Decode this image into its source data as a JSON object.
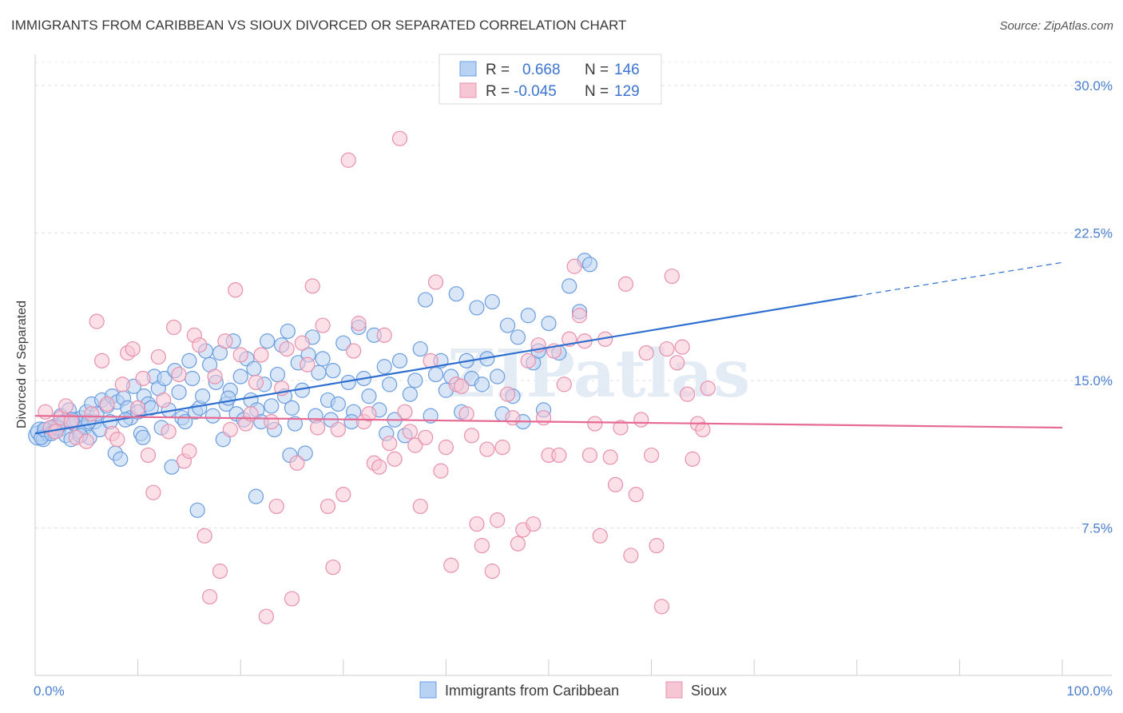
{
  "header": {
    "title": "IMMIGRANTS FROM CARIBBEAN VS SIOUX DIVORCED OR SEPARATED CORRELATION CHART",
    "source": "Source: ZipAtlas.com"
  },
  "watermark": "ZIPatlas",
  "legend": {
    "rows": [
      {
        "r_label": "R =",
        "r_value": "0.668",
        "n_label": "N =",
        "n_value": "146",
        "color": "#aac8f0",
        "stroke": "#6a9de0"
      },
      {
        "r_label": "R =",
        "r_value": "-0.045",
        "n_label": "N =",
        "n_value": "129",
        "color": "#f6c0d2",
        "stroke": "#e890ad"
      }
    ]
  },
  "chart_data": {
    "type": "scatter",
    "title": "IMMIGRANTS FROM CARIBBEAN VS SIOUX DIVORCED OR SEPARATED CORRELATION CHART",
    "xlabel": "",
    "ylabel": "Divorced or Separated",
    "xlim": [
      0,
      100
    ],
    "ylim": [
      0,
      31.5
    ],
    "y_ticks": [
      7.5,
      15.0,
      22.5,
      30.0
    ],
    "y_tick_labels": [
      "7.5%",
      "15.0%",
      "22.5%",
      "30.0%"
    ],
    "x_tick_labels": [
      "0.0%",
      "100.0%"
    ],
    "grid": true,
    "legend_placement": "top-center",
    "series": [
      {
        "name": "Immigrants from Caribbean",
        "color": "#6a9de0",
        "fill": "#b8d2f3",
        "trend": {
          "x": [
            0,
            80,
            100
          ],
          "y": [
            12.3,
            19.3,
            21.0
          ],
          "solid_until": 80
        },
        "points": [
          [
            0.3,
            12.2
          ],
          [
            0.5,
            12.4
          ],
          [
            0.8,
            12.0
          ],
          [
            1.0,
            12.5
          ],
          [
            1.2,
            12.3
          ],
          [
            1.5,
            12.6
          ],
          [
            1.8,
            12.4
          ],
          [
            2.0,
            12.7
          ],
          [
            2.3,
            12.5
          ],
          [
            2.5,
            13.2
          ],
          [
            2.8,
            12.9
          ],
          [
            3.0,
            12.2
          ],
          [
            3.3,
            13.5
          ],
          [
            3.5,
            12.0
          ],
          [
            3.8,
            12.8
          ],
          [
            4.0,
            13.0
          ],
          [
            4.3,
            12.4
          ],
          [
            4.5,
            13.1
          ],
          [
            4.8,
            12.6
          ],
          [
            5.0,
            13.4
          ],
          [
            5.3,
            12.1
          ],
          [
            5.5,
            13.8
          ],
          [
            5.8,
            12.9
          ],
          [
            6.0,
            13.3
          ],
          [
            6.3,
            12.5
          ],
          [
            6.5,
            14.0
          ],
          [
            7.0,
            13.7
          ],
          [
            7.3,
            12.9
          ],
          [
            7.5,
            14.2
          ],
          [
            7.8,
            11.3
          ],
          [
            8.0,
            13.9
          ],
          [
            8.3,
            11.0
          ],
          [
            8.6,
            14.1
          ],
          [
            9.0,
            13.6
          ],
          [
            9.3,
            13.1
          ],
          [
            9.6,
            14.7
          ],
          [
            10.0,
            13.4
          ],
          [
            10.3,
            12.3
          ],
          [
            10.6,
            14.2
          ],
          [
            11.0,
            13.8
          ],
          [
            11.3,
            13.6
          ],
          [
            11.6,
            15.2
          ],
          [
            12.0,
            14.6
          ],
          [
            12.3,
            12.6
          ],
          [
            12.6,
            15.1
          ],
          [
            13.0,
            13.5
          ],
          [
            13.3,
            10.6
          ],
          [
            13.6,
            15.5
          ],
          [
            14.0,
            14.4
          ],
          [
            14.3,
            13.1
          ],
          [
            14.6,
            12.9
          ],
          [
            15.0,
            16.0
          ],
          [
            15.3,
            15.1
          ],
          [
            15.6,
            13.4
          ],
          [
            16.0,
            13.6
          ],
          [
            16.3,
            14.2
          ],
          [
            16.6,
            16.5
          ],
          [
            17.0,
            15.8
          ],
          [
            17.3,
            13.2
          ],
          [
            17.6,
            14.9
          ],
          [
            18.0,
            16.4
          ],
          [
            18.3,
            12.0
          ],
          [
            18.6,
            13.8
          ],
          [
            19.0,
            14.5
          ],
          [
            19.3,
            17.0
          ],
          [
            19.6,
            13.3
          ],
          [
            20.0,
            15.2
          ],
          [
            20.3,
            13.0
          ],
          [
            20.6,
            16.1
          ],
          [
            21.0,
            14.0
          ],
          [
            21.3,
            15.6
          ],
          [
            21.6,
            13.5
          ],
          [
            22.0,
            12.9
          ],
          [
            22.3,
            14.8
          ],
          [
            22.6,
            17.0
          ],
          [
            23.0,
            13.7
          ],
          [
            23.3,
            12.5
          ],
          [
            23.6,
            15.3
          ],
          [
            24.0,
            16.8
          ],
          [
            24.3,
            14.2
          ],
          [
            24.6,
            17.5
          ],
          [
            25.0,
            13.6
          ],
          [
            25.3,
            12.8
          ],
          [
            25.6,
            15.9
          ],
          [
            26.0,
            14.5
          ],
          [
            26.3,
            11.3
          ],
          [
            26.6,
            16.3
          ],
          [
            27.0,
            17.2
          ],
          [
            27.3,
            13.2
          ],
          [
            27.6,
            15.4
          ],
          [
            28.0,
            16.1
          ],
          [
            28.5,
            14.0
          ],
          [
            29.0,
            15.5
          ],
          [
            29.5,
            13.8
          ],
          [
            30.0,
            16.9
          ],
          [
            30.5,
            14.9
          ],
          [
            31.0,
            13.4
          ],
          [
            31.5,
            17.7
          ],
          [
            32.0,
            15.1
          ],
          [
            32.5,
            14.2
          ],
          [
            33.0,
            17.3
          ],
          [
            33.5,
            13.5
          ],
          [
            34.0,
            15.7
          ],
          [
            34.5,
            14.8
          ],
          [
            35.0,
            13.0
          ],
          [
            35.5,
            16.0
          ],
          [
            36.0,
            12.2
          ],
          [
            36.5,
            14.3
          ],
          [
            37.0,
            15.0
          ],
          [
            37.5,
            16.6
          ],
          [
            38.0,
            19.1
          ],
          [
            38.5,
            13.2
          ],
          [
            39.0,
            15.3
          ],
          [
            39.5,
            16.0
          ],
          [
            40.0,
            14.5
          ],
          [
            40.5,
            15.2
          ],
          [
            41.0,
            19.4
          ],
          [
            41.5,
            13.4
          ],
          [
            42.0,
            16.0
          ],
          [
            42.5,
            15.1
          ],
          [
            43.0,
            18.7
          ],
          [
            43.5,
            14.8
          ],
          [
            44.0,
            16.1
          ],
          [
            44.5,
            19.0
          ],
          [
            45.0,
            15.2
          ],
          [
            45.5,
            13.3
          ],
          [
            46.0,
            17.8
          ],
          [
            46.5,
            14.2
          ],
          [
            47.0,
            17.2
          ],
          [
            47.5,
            12.9
          ],
          [
            48.0,
            18.3
          ],
          [
            48.5,
            15.9
          ],
          [
            49.0,
            16.5
          ],
          [
            49.5,
            13.5
          ],
          [
            50.0,
            17.9
          ],
          [
            51.0,
            16.4
          ],
          [
            52.0,
            19.8
          ],
          [
            53.0,
            18.5
          ],
          [
            53.5,
            21.1
          ],
          [
            54.0,
            20.9
          ],
          [
            10.5,
            12.1
          ],
          [
            5.2,
            12.9
          ],
          [
            8.8,
            13.0
          ],
          [
            15.8,
            8.4
          ],
          [
            21.5,
            9.1
          ],
          [
            24.8,
            11.2
          ],
          [
            28.8,
            13.0
          ],
          [
            34.2,
            12.3
          ],
          [
            30.8,
            12.9
          ],
          [
            18.8,
            14.1
          ],
          [
            0.6,
            12.1
          ],
          [
            0.9,
            12.5
          ],
          [
            1.6,
            12.3
          ],
          [
            2.2,
            12.6
          ],
          [
            3.6,
            13.0
          ],
          [
            4.4,
            12.2
          ]
        ]
      },
      {
        "name": "Sioux",
        "color": "#e890ad",
        "fill": "#f7c6d5",
        "trend": {
          "x": [
            0,
            100
          ],
          "y": [
            13.2,
            12.6
          ],
          "solid_until": 100
        },
        "points": [
          [
            1.0,
            13.4
          ],
          [
            1.5,
            12.6
          ],
          [
            2.0,
            12.4
          ],
          [
            2.5,
            13.1
          ],
          [
            3.0,
            13.7
          ],
          [
            3.5,
            12.9
          ],
          [
            4.0,
            12.1
          ],
          [
            5.0,
            11.9
          ],
          [
            5.5,
            13.3
          ],
          [
            6.0,
            18.0
          ],
          [
            6.5,
            16.0
          ],
          [
            7.0,
            13.8
          ],
          [
            7.5,
            12.3
          ],
          [
            8.0,
            12.0
          ],
          [
            8.5,
            14.8
          ],
          [
            9.0,
            16.4
          ],
          [
            9.5,
            16.6
          ],
          [
            10.0,
            13.6
          ],
          [
            10.5,
            15.1
          ],
          [
            11.0,
            11.2
          ],
          [
            11.5,
            9.3
          ],
          [
            12.0,
            16.2
          ],
          [
            12.5,
            14.0
          ],
          [
            13.0,
            12.4
          ],
          [
            13.5,
            17.7
          ],
          [
            14.0,
            15.3
          ],
          [
            14.5,
            10.9
          ],
          [
            15.0,
            11.4
          ],
          [
            15.5,
            17.3
          ],
          [
            16.0,
            16.8
          ],
          [
            16.5,
            7.1
          ],
          [
            17.0,
            4.0
          ],
          [
            17.5,
            15.2
          ],
          [
            18.0,
            5.3
          ],
          [
            18.5,
            17.0
          ],
          [
            19.0,
            12.5
          ],
          [
            19.5,
            19.6
          ],
          [
            20.0,
            16.3
          ],
          [
            20.5,
            12.8
          ],
          [
            21.0,
            13.3
          ],
          [
            21.5,
            14.9
          ],
          [
            22.0,
            16.3
          ],
          [
            22.5,
            3.0
          ],
          [
            23.0,
            12.9
          ],
          [
            23.5,
            8.6
          ],
          [
            24.0,
            14.6
          ],
          [
            24.5,
            16.6
          ],
          [
            25.0,
            3.9
          ],
          [
            25.5,
            10.8
          ],
          [
            26.0,
            16.9
          ],
          [
            26.5,
            15.8
          ],
          [
            27.0,
            19.8
          ],
          [
            27.5,
            12.6
          ],
          [
            28.0,
            17.8
          ],
          [
            28.5,
            8.6
          ],
          [
            29.0,
            5.5
          ],
          [
            29.5,
            12.5
          ],
          [
            30.0,
            9.2
          ],
          [
            30.5,
            26.2
          ],
          [
            31.0,
            16.5
          ],
          [
            31.5,
            17.9
          ],
          [
            32.0,
            12.9
          ],
          [
            32.5,
            13.3
          ],
          [
            33.0,
            10.8
          ],
          [
            33.5,
            10.6
          ],
          [
            34.0,
            17.3
          ],
          [
            34.5,
            11.8
          ],
          [
            35.0,
            11.0
          ],
          [
            35.5,
            27.3
          ],
          [
            36.0,
            13.4
          ],
          [
            36.5,
            12.4
          ],
          [
            37.0,
            11.7
          ],
          [
            37.5,
            8.6
          ],
          [
            38.0,
            12.1
          ],
          [
            38.5,
            16.0
          ],
          [
            39.0,
            20.0
          ],
          [
            39.5,
            10.4
          ],
          [
            40.0,
            11.6
          ],
          [
            40.5,
            5.6
          ],
          [
            41.0,
            14.8
          ],
          [
            41.5,
            14.7
          ],
          [
            42.0,
            13.3
          ],
          [
            42.5,
            12.2
          ],
          [
            43.0,
            7.7
          ],
          [
            43.5,
            6.6
          ],
          [
            44.0,
            11.5
          ],
          [
            44.5,
            5.3
          ],
          [
            45.0,
            7.9
          ],
          [
            45.5,
            11.6
          ],
          [
            46.0,
            14.3
          ],
          [
            46.5,
            13.1
          ],
          [
            47.0,
            6.7
          ],
          [
            47.5,
            7.4
          ],
          [
            48.0,
            16.0
          ],
          [
            48.5,
            7.7
          ],
          [
            49.0,
            16.8
          ],
          [
            49.5,
            13.1
          ],
          [
            50.0,
            11.2
          ],
          [
            50.5,
            16.5
          ],
          [
            51.0,
            11.2
          ],
          [
            51.5,
            14.8
          ],
          [
            52.0,
            17.1
          ],
          [
            52.5,
            20.8
          ],
          [
            53.0,
            18.3
          ],
          [
            53.5,
            17.0
          ],
          [
            54.0,
            11.2
          ],
          [
            54.5,
            12.8
          ],
          [
            55.0,
            7.1
          ],
          [
            55.5,
            17.1
          ],
          [
            56.0,
            11.1
          ],
          [
            56.5,
            9.7
          ],
          [
            57.0,
            12.6
          ],
          [
            57.5,
            19.9
          ],
          [
            58.0,
            6.1
          ],
          [
            58.5,
            9.2
          ],
          [
            59.0,
            13.0
          ],
          [
            59.5,
            16.4
          ],
          [
            60.0,
            11.2
          ],
          [
            60.5,
            6.6
          ],
          [
            61.0,
            3.5
          ],
          [
            61.5,
            16.6
          ],
          [
            62.0,
            20.3
          ],
          [
            62.5,
            15.9
          ],
          [
            63.0,
            16.7
          ],
          [
            63.5,
            14.3
          ],
          [
            64.0,
            11.0
          ],
          [
            64.5,
            12.8
          ],
          [
            65.0,
            12.5
          ],
          [
            65.5,
            14.6
          ]
        ]
      }
    ]
  },
  "bottom_legend": {
    "items": [
      {
        "label": "Immigrants from Caribbean"
      },
      {
        "label": "Sioux"
      }
    ]
  }
}
